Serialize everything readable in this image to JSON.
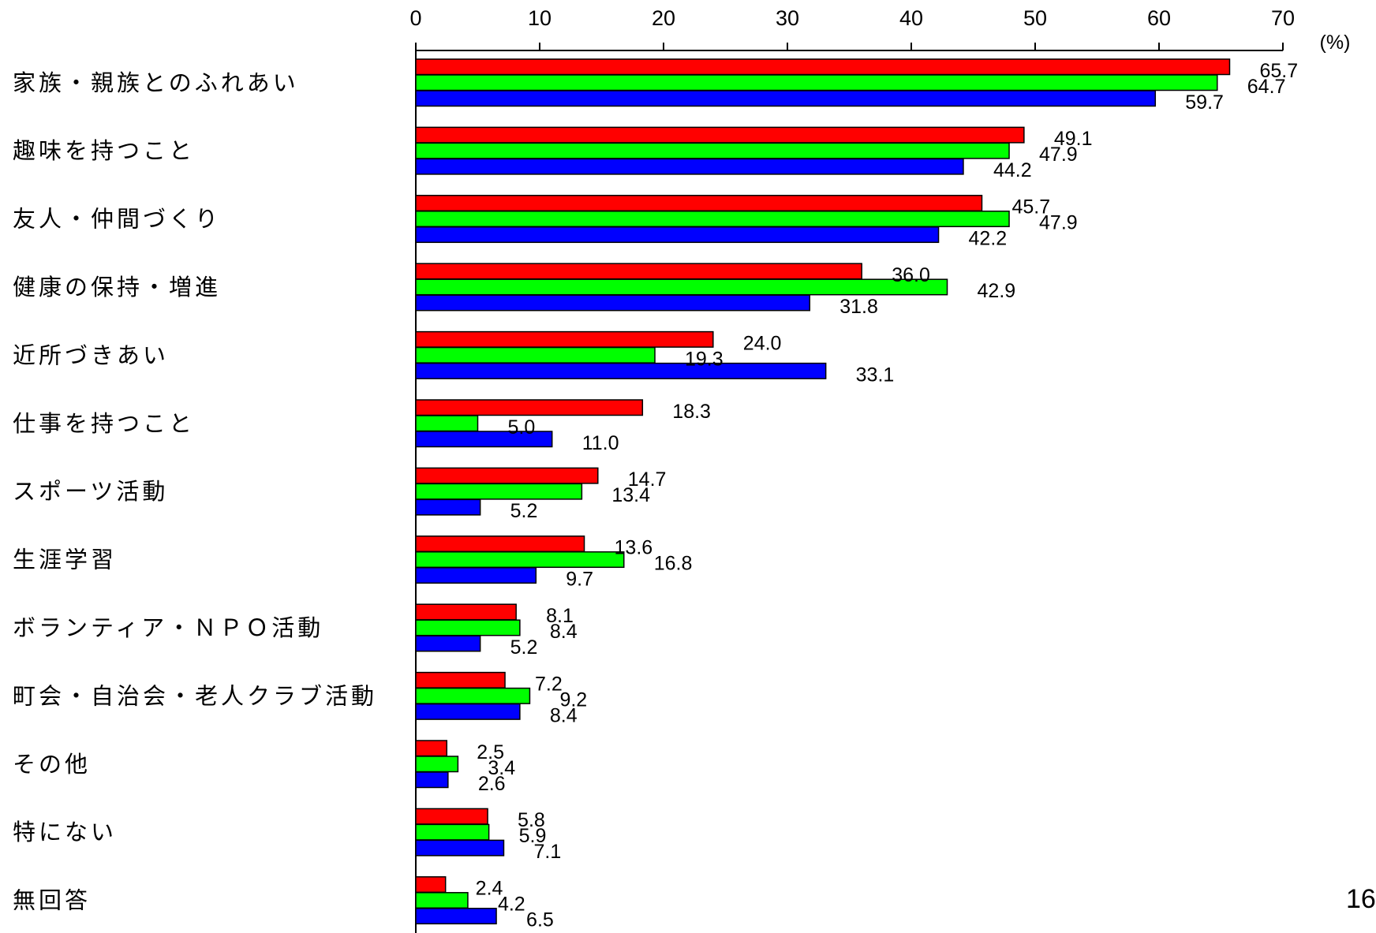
{
  "chart_data": {
    "type": "bar",
    "orientation": "horizontal",
    "title": "",
    "xlabel": "",
    "ylabel": "",
    "unit": "(%)",
    "xlim": [
      0,
      70
    ],
    "xticks": [
      0,
      10,
      20,
      30,
      40,
      50,
      60,
      70
    ],
    "grid": false,
    "legend": "none",
    "categories": [
      "家族・親族とのふれあい",
      "趣味を持つこと",
      "友人・仲間づくり",
      "健康の保持・増進",
      "近所づきあい",
      "仕事を持つこと",
      "スポーツ活動",
      "生涯学習",
      "ボランティア・ＮＰＯ活動",
      "町会・自治会・老人クラブ活動",
      "その他",
      "特にない",
      "無回答"
    ],
    "series": [
      {
        "color": "#ff0000",
        "values": [
          "65.7",
          "49.1",
          "45.7",
          "36.0",
          "24.0",
          "18.3",
          "14.7",
          "13.6",
          "8.1",
          "7.2",
          "2.5",
          "5.8",
          "2.4"
        ]
      },
      {
        "color": "#00ff00",
        "values": [
          "64.7",
          "47.9",
          "47.9",
          "42.9",
          "19.3",
          "5.0",
          "13.4",
          "16.8",
          "8.4",
          "9.2",
          "3.4",
          "5.9",
          "4.2"
        ]
      },
      {
        "color": "#0000ff",
        "values": [
          "59.7",
          "44.2",
          "42.2",
          "31.8",
          "33.1",
          "11.0",
          "5.2",
          "9.7",
          "5.2",
          "8.4",
          "2.6",
          "7.1",
          "6.5"
        ]
      }
    ]
  },
  "page_number": "16"
}
